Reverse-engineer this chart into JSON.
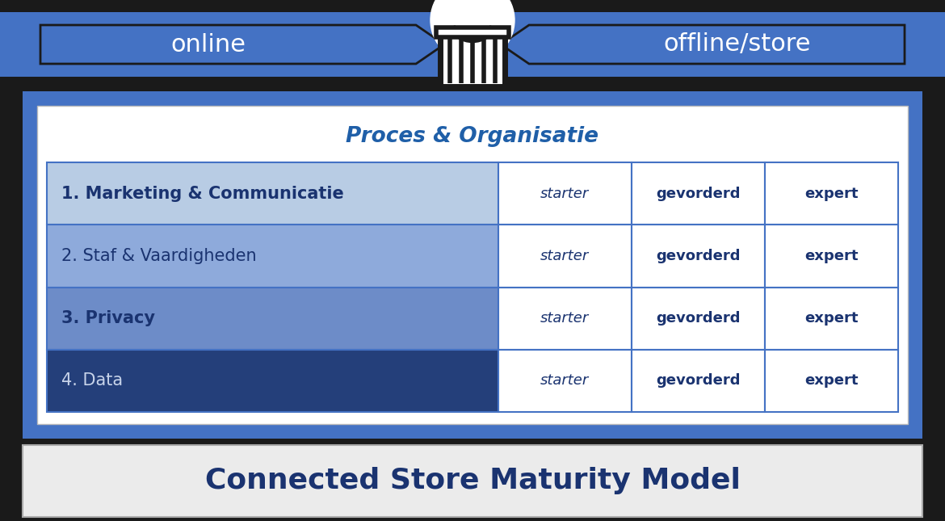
{
  "title": "Connected Store Maturity Model",
  "subtitle": "Proces & Organisatie",
  "online_label": "online",
  "offline_label": "offline/store",
  "rows": [
    {
      "label": "1. Marketing & Communicatie",
      "bg": "#b8cce4",
      "text_color": "#1a3370",
      "bold": true
    },
    {
      "label": "2. Staf & Vaardigheden",
      "bg": "#8eaadb",
      "text_color": "#1a3370",
      "bold": false
    },
    {
      "label": "3. Privacy",
      "bg": "#6d8cc8",
      "text_color": "#1a3370",
      "bold": true
    },
    {
      "label": "4. Data",
      "bg": "#243f7a",
      "text_color": "#c8d4ea",
      "bold": false
    }
  ],
  "col_labels": [
    "starter",
    "gevorderd",
    "expert"
  ],
  "outer_bg": "#4472c4",
  "inner_bg": "#ffffff",
  "bottom_bg": "#ebebeb",
  "title_color": "#1a3370",
  "subtitle_color": "#1f5fa8",
  "online_color": "#ffffff",
  "offline_color": "#ffffff",
  "grid_color": "#4472c4",
  "arrow_color": "#4472c4",
  "black": "#1a1a1a",
  "white": "#ffffff"
}
